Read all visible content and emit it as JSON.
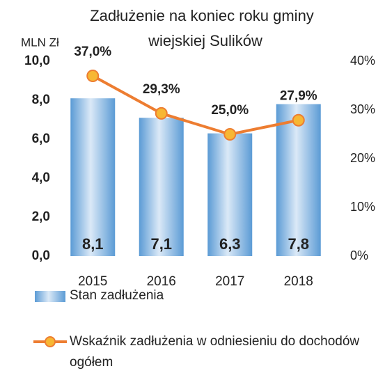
{
  "chart_data": {
    "type": "bar",
    "title": [
      "Zadłużenie na koniec roku gminy",
      "wiejskiej Sulików"
    ],
    "ylabel": "MLN Zł",
    "categories": [
      "2015",
      "2016",
      "2017",
      "2018"
    ],
    "series": [
      {
        "name": "Stan zadłużenia",
        "color": "#5b9bd5",
        "values": [
          8.1,
          7.1,
          6.3,
          7.8
        ],
        "value_labels": [
          "8,1",
          "7,1",
          "6,3",
          "7,8"
        ]
      },
      {
        "name": "Wskaźnik zadłużenia w odniesieniu do dochodów ogółem",
        "type": "line",
        "axis": "y2",
        "color": "#ed7d31",
        "marker_color": "#f7b733",
        "values": [
          37.0,
          29.3,
          25.0,
          27.9
        ],
        "value_labels": [
          "37,0%",
          "29,3%",
          "25,0%",
          "27,9%"
        ]
      }
    ],
    "ylim": [
      0,
      10
    ],
    "yticks": [
      {
        "value": 0,
        "label": "0,0"
      },
      {
        "value": 2,
        "label": "2,0"
      },
      {
        "value": 4,
        "label": "4,0"
      },
      {
        "value": 6,
        "label": "6,0"
      },
      {
        "value": 8,
        "label": "8,0"
      },
      {
        "value": 10,
        "label": "10,0"
      }
    ],
    "y2lim": [
      0,
      40
    ],
    "y2ticks": [
      {
        "value": 0,
        "label": "0%"
      },
      {
        "value": 10,
        "label": "10%"
      },
      {
        "value": 20,
        "label": "20%"
      },
      {
        "value": 30,
        "label": "30%"
      },
      {
        "value": 40,
        "label": "40%"
      }
    ],
    "legend": "bottom"
  }
}
